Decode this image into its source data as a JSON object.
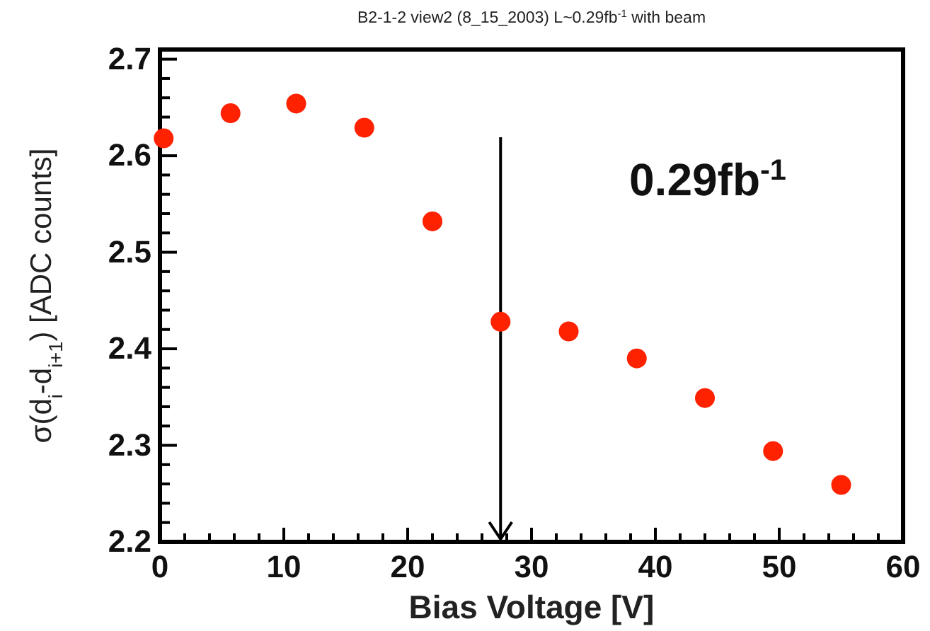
{
  "chart_data": {
    "type": "scatter",
    "title": "B2-1-2 view2 (8_15_2003) L~0.29fb$^{-1}$ with beam",
    "xlabel": "Bias Voltage [V]",
    "ylabel": "σ(d$_{i}$-d$_{i+1}$) [ADC counts]",
    "x": [
      0.3,
      5.7,
      11.0,
      16.5,
      22.0,
      27.5,
      33.0,
      38.5,
      44.0,
      49.5,
      55.0
    ],
    "series": [
      {
        "color": "#ff2200",
        "values": [
          2.618,
          2.644,
          2.654,
          2.629,
          2.532,
          2.428,
          2.418,
          2.39,
          2.349,
          2.294,
          2.259
        ]
      }
    ],
    "xlim": [
      0,
      60
    ],
    "ylim": [
      2.2,
      2.71
    ],
    "xticks": [
      0,
      {
        "value": 2,
        "label": null
      },
      {
        "value": 4,
        "label": null
      },
      {
        "value": 6,
        "label": null
      },
      {
        "value": 8,
        "label": null
      },
      10,
      {
        "value": 12,
        "label": null
      },
      {
        "value": 14,
        "label": null
      },
      {
        "value": 16,
        "label": null
      },
      {
        "value": 18,
        "label": null
      },
      20,
      {
        "value": 22,
        "label": null
      },
      {
        "value": 24,
        "label": null
      },
      {
        "value": 26,
        "label": null
      },
      {
        "value": 28,
        "label": null
      },
      30,
      {
        "value": 32,
        "label": null
      },
      {
        "value": 34,
        "label": null
      },
      {
        "value": 36,
        "label": null
      },
      {
        "value": 38,
        "label": null
      },
      40,
      {
        "value": 42,
        "label": null
      },
      {
        "value": 44,
        "label": null
      },
      {
        "value": 46,
        "label": null
      },
      {
        "value": 48,
        "label": null
      },
      50,
      {
        "value": 52,
        "label": null
      },
      {
        "value": 54,
        "label": null
      },
      {
        "value": 56,
        "label": null
      },
      {
        "value": 58,
        "label": null
      },
      60
    ],
    "yticks": [
      2.2,
      {
        "value": 2.22,
        "label": null
      },
      {
        "value": 2.24,
        "label": null
      },
      {
        "value": 2.26,
        "label": null
      },
      {
        "value": 2.28,
        "label": null
      },
      2.3,
      {
        "value": 2.32,
        "label": null
      },
      {
        "value": 2.34,
        "label": null
      },
      {
        "value": 2.36,
        "label": null
      },
      {
        "value": 2.38,
        "label": null
      },
      2.4,
      {
        "value": 2.42,
        "label": null
      },
      {
        "value": 2.44,
        "label": null
      },
      {
        "value": 2.46,
        "label": null
      },
      {
        "value": 2.48,
        "label": null
      },
      2.5,
      {
        "value": 2.52,
        "label": null
      },
      {
        "value": 2.54,
        "label": null
      },
      {
        "value": 2.56,
        "label": null
      },
      {
        "value": 2.58,
        "label": null
      },
      2.6,
      {
        "value": 2.62,
        "label": null
      },
      {
        "value": 2.64,
        "label": null
      },
      {
        "value": 2.66,
        "label": null
      },
      {
        "value": 2.68,
        "label": null
      },
      2.7
    ],
    "ref_lines": [
      {
        "axis": "x",
        "value": 27.5,
        "color": "#000000"
      }
    ],
    "annotations": [
      "0.29fb$^{-1}$"
    ],
    "marker": "circle"
  }
}
